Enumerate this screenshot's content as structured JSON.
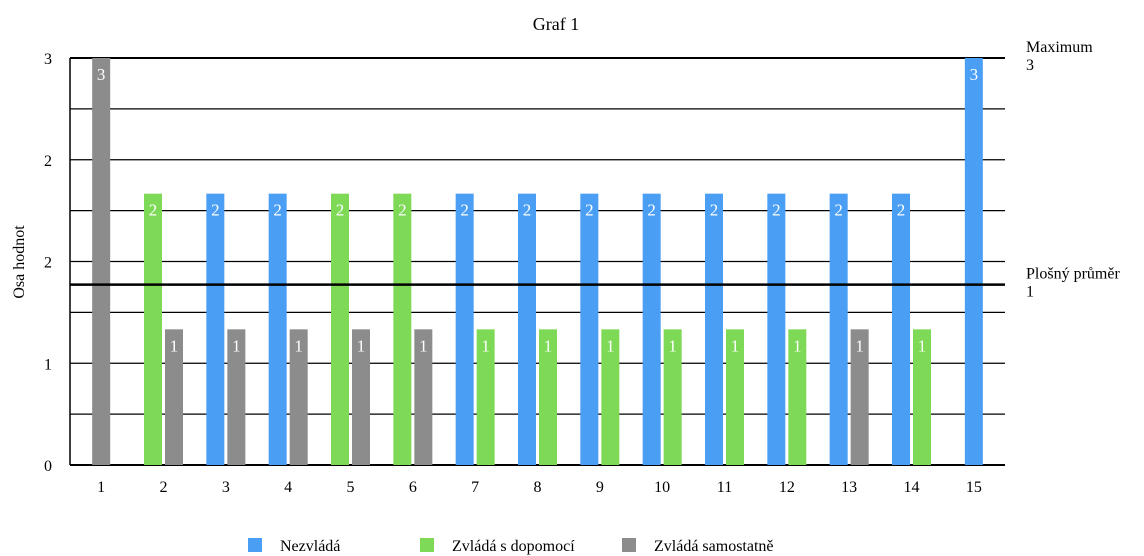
{
  "chart_data": {
    "type": "bar",
    "title": "Graf 1",
    "ylabel": "Osa hodnot",
    "xlabel": "",
    "categories": [
      "1",
      "2",
      "3",
      "4",
      "5",
      "6",
      "7",
      "8",
      "9",
      "10",
      "11",
      "12",
      "13",
      "14",
      "15"
    ],
    "y_tick_labels": [
      "0",
      "1",
      "2",
      "2",
      "3"
    ],
    "ylim": [
      0,
      3
    ],
    "grid": true,
    "legend_position": "bottom",
    "series": [
      {
        "name": "Nezvládá",
        "color": "#4a9ff5",
        "values": [
          null,
          null,
          2,
          2,
          null,
          null,
          2,
          2,
          2,
          2,
          2,
          2,
          2,
          2,
          3
        ]
      },
      {
        "name": "Zvládá s dopomocí",
        "color": "#7ed957",
        "values": [
          null,
          2,
          null,
          null,
          2,
          2,
          1,
          1,
          1,
          1,
          1,
          1,
          null,
          1,
          null
        ]
      },
      {
        "name": "Zvládá samostatně",
        "color": "#8c8c8c",
        "values": [
          3,
          1,
          1,
          1,
          1,
          1,
          null,
          null,
          null,
          null,
          null,
          null,
          1,
          null,
          null
        ]
      }
    ],
    "value_labels": {
      "Nezvládá": [
        null,
        null,
        "2",
        "2",
        null,
        null,
        "2",
        "2",
        "2",
        "2",
        "2",
        "2",
        "2",
        "2",
        "3"
      ],
      "Zvládá s dopomocí": [
        null,
        "2",
        null,
        null,
        "2",
        "2",
        "1",
        "1",
        "1",
        "1",
        "1",
        "1",
        null,
        "1",
        null
      ],
      "Zvládá samostatně": [
        "3",
        "1",
        "1",
        "1",
        "1",
        "1",
        null,
        null,
        null,
        null,
        null,
        null,
        "1",
        null,
        null
      ]
    },
    "reference_lines": [
      {
        "label": "Maximum",
        "value_label": "3",
        "value": 3
      },
      {
        "label": "Plošný průměr",
        "value_label": "1",
        "value": 1.33
      }
    ]
  }
}
